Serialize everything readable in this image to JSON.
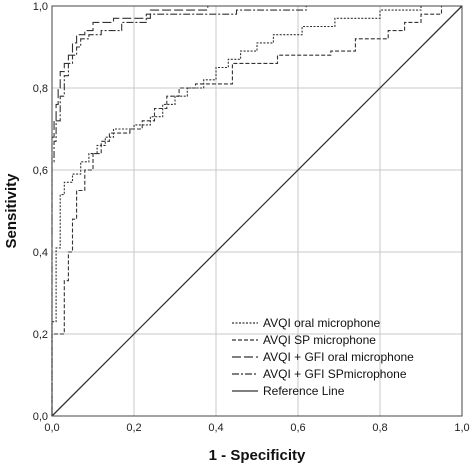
{
  "chart_data": {
    "type": "line",
    "title": "",
    "xlabel": "1 - Specificity",
    "ylabel": "Sensitivity",
    "xlim": [
      0,
      1
    ],
    "ylim": [
      0,
      1
    ],
    "xticks": [
      "0,0",
      "0,2",
      "0,4",
      "0,6",
      "0,8",
      "1,0"
    ],
    "yticks": [
      "0,0",
      "0,2",
      "0,4",
      "0,6",
      "0,8",
      "1,0"
    ],
    "grid": true,
    "legend_position": "bottom-right",
    "series": [
      {
        "name": "AVQI oral microphone",
        "style": "dotted",
        "color": "#333333",
        "points": [
          [
            0,
            0
          ],
          [
            0,
            0.23
          ],
          [
            0.01,
            0.23
          ],
          [
            0.01,
            0.41
          ],
          [
            0.02,
            0.41
          ],
          [
            0.02,
            0.54
          ],
          [
            0.03,
            0.54
          ],
          [
            0.03,
            0.57
          ],
          [
            0.05,
            0.57
          ],
          [
            0.05,
            0.59
          ],
          [
            0.07,
            0.59
          ],
          [
            0.07,
            0.62
          ],
          [
            0.09,
            0.62
          ],
          [
            0.09,
            0.64
          ],
          [
            0.11,
            0.64
          ],
          [
            0.11,
            0.66
          ],
          [
            0.13,
            0.66
          ],
          [
            0.13,
            0.68
          ],
          [
            0.15,
            0.68
          ],
          [
            0.15,
            0.7
          ],
          [
            0.2,
            0.7
          ],
          [
            0.2,
            0.71
          ],
          [
            0.24,
            0.71
          ],
          [
            0.24,
            0.73
          ],
          [
            0.27,
            0.73
          ],
          [
            0.27,
            0.76
          ],
          [
            0.3,
            0.76
          ],
          [
            0.3,
            0.78
          ],
          [
            0.33,
            0.78
          ],
          [
            0.33,
            0.8
          ],
          [
            0.37,
            0.8
          ],
          [
            0.37,
            0.82
          ],
          [
            0.4,
            0.82
          ],
          [
            0.4,
            0.85
          ],
          [
            0.43,
            0.85
          ],
          [
            0.43,
            0.87
          ],
          [
            0.46,
            0.87
          ],
          [
            0.46,
            0.89
          ],
          [
            0.5,
            0.89
          ],
          [
            0.5,
            0.91
          ],
          [
            0.54,
            0.91
          ],
          [
            0.54,
            0.93
          ],
          [
            0.61,
            0.93
          ],
          [
            0.61,
            0.95
          ],
          [
            0.69,
            0.95
          ],
          [
            0.69,
            0.97
          ],
          [
            0.8,
            0.97
          ],
          [
            0.8,
            0.99
          ],
          [
            0.9,
            0.99
          ],
          [
            0.9,
            1.0
          ],
          [
            1,
            1
          ]
        ]
      },
      {
        "name": "AVQI SP microphone",
        "style": "dashed",
        "color": "#333333",
        "points": [
          [
            0,
            0
          ],
          [
            0,
            0.2
          ],
          [
            0.03,
            0.2
          ],
          [
            0.03,
            0.33
          ],
          [
            0.04,
            0.33
          ],
          [
            0.04,
            0.4
          ],
          [
            0.05,
            0.4
          ],
          [
            0.05,
            0.48
          ],
          [
            0.06,
            0.48
          ],
          [
            0.06,
            0.55
          ],
          [
            0.08,
            0.55
          ],
          [
            0.08,
            0.6
          ],
          [
            0.1,
            0.6
          ],
          [
            0.1,
            0.64
          ],
          [
            0.12,
            0.64
          ],
          [
            0.12,
            0.67
          ],
          [
            0.14,
            0.67
          ],
          [
            0.14,
            0.69
          ],
          [
            0.19,
            0.69
          ],
          [
            0.19,
            0.7
          ],
          [
            0.22,
            0.7
          ],
          [
            0.22,
            0.72
          ],
          [
            0.25,
            0.72
          ],
          [
            0.25,
            0.75
          ],
          [
            0.28,
            0.75
          ],
          [
            0.28,
            0.78
          ],
          [
            0.31,
            0.78
          ],
          [
            0.31,
            0.8
          ],
          [
            0.35,
            0.8
          ],
          [
            0.35,
            0.81
          ],
          [
            0.44,
            0.81
          ],
          [
            0.44,
            0.86
          ],
          [
            0.55,
            0.86
          ],
          [
            0.55,
            0.88
          ],
          [
            0.68,
            0.88
          ],
          [
            0.68,
            0.89
          ],
          [
            0.74,
            0.89
          ],
          [
            0.74,
            0.92
          ],
          [
            0.82,
            0.92
          ],
          [
            0.82,
            0.94
          ],
          [
            0.86,
            0.94
          ],
          [
            0.86,
            0.96
          ],
          [
            0.9,
            0.96
          ],
          [
            0.9,
            0.98
          ],
          [
            0.95,
            0.98
          ],
          [
            0.95,
            1.0
          ],
          [
            1,
            1
          ]
        ]
      },
      {
        "name": "AVQI + GFI oral microphone",
        "style": "longdash",
        "color": "#333333",
        "points": [
          [
            0,
            0
          ],
          [
            0,
            0.68
          ],
          [
            0.005,
            0.68
          ],
          [
            0.005,
            0.72
          ],
          [
            0.01,
            0.72
          ],
          [
            0.01,
            0.76
          ],
          [
            0.015,
            0.76
          ],
          [
            0.015,
            0.8
          ],
          [
            0.02,
            0.8
          ],
          [
            0.02,
            0.84
          ],
          [
            0.03,
            0.84
          ],
          [
            0.03,
            0.86
          ],
          [
            0.04,
            0.86
          ],
          [
            0.04,
            0.88
          ],
          [
            0.05,
            0.88
          ],
          [
            0.05,
            0.91
          ],
          [
            0.06,
            0.91
          ],
          [
            0.06,
            0.93
          ],
          [
            0.08,
            0.93
          ],
          [
            0.08,
            0.94
          ],
          [
            0.1,
            0.94
          ],
          [
            0.1,
            0.96
          ],
          [
            0.15,
            0.96
          ],
          [
            0.15,
            0.97
          ],
          [
            0.24,
            0.97
          ],
          [
            0.24,
            0.99
          ],
          [
            0.38,
            0.99
          ],
          [
            0.38,
            1.0
          ],
          [
            1,
            1
          ]
        ]
      },
      {
        "name": "AVQI + GFI SPmicrophone",
        "style": "dashdot",
        "color": "#333333",
        "points": [
          [
            0,
            0
          ],
          [
            0,
            0.62
          ],
          [
            0.005,
            0.62
          ],
          [
            0.005,
            0.67
          ],
          [
            0.01,
            0.67
          ],
          [
            0.01,
            0.72
          ],
          [
            0.02,
            0.72
          ],
          [
            0.02,
            0.78
          ],
          [
            0.03,
            0.78
          ],
          [
            0.03,
            0.83
          ],
          [
            0.04,
            0.83
          ],
          [
            0.04,
            0.86
          ],
          [
            0.05,
            0.86
          ],
          [
            0.05,
            0.88
          ],
          [
            0.06,
            0.88
          ],
          [
            0.06,
            0.9
          ],
          [
            0.07,
            0.9
          ],
          [
            0.07,
            0.92
          ],
          [
            0.09,
            0.92
          ],
          [
            0.09,
            0.93
          ],
          [
            0.12,
            0.93
          ],
          [
            0.12,
            0.94
          ],
          [
            0.17,
            0.94
          ],
          [
            0.17,
            0.96
          ],
          [
            0.23,
            0.96
          ],
          [
            0.23,
            0.98
          ],
          [
            0.45,
            0.98
          ],
          [
            0.45,
            0.99
          ],
          [
            0.62,
            0.99
          ],
          [
            0.62,
            1.0
          ],
          [
            1,
            1
          ]
        ]
      },
      {
        "name": "Reference Line",
        "style": "solid",
        "color": "#333333",
        "points": [
          [
            0,
            0
          ],
          [
            1,
            1
          ]
        ]
      }
    ]
  }
}
